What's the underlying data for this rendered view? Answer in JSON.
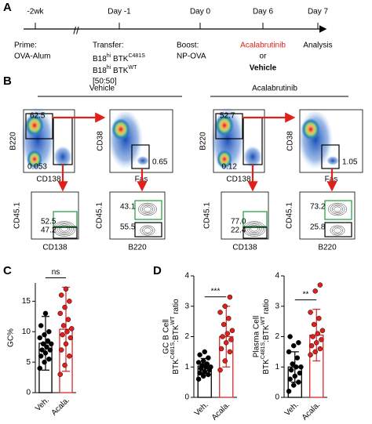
{
  "panel_a": {
    "label": "A",
    "timepoints": [
      "-2wk",
      "Day -1",
      "Day 0",
      "Day 6",
      "Day 7"
    ],
    "prime": [
      "Prime:",
      "OVA-Alum"
    ],
    "transfer": {
      "title": "Transfer:",
      "line1": [
        "B18",
        "hi",
        " BTK",
        "C481S"
      ],
      "line2": [
        "B18",
        "hi",
        " BTK",
        "WT"
      ],
      "ratio": "[50:50]"
    },
    "boost": [
      "Boost:",
      "NP-OVA"
    ],
    "treatment": [
      "Acalabrutinib",
      "or",
      "Vehicle"
    ],
    "analysis": "Analysis"
  },
  "panel_b": {
    "label": "B",
    "axes": [
      {
        "x": "CD138",
        "y": "B220"
      },
      {
        "x": "Fas",
        "y": "CD38"
      },
      {
        "x": "CD138",
        "y": "CD45.1"
      },
      {
        "x": "B220",
        "y": "CD45.1"
      }
    ],
    "groups": [
      {
        "name": "Vehicle",
        "gates": [
          [
            "62.5",
            "0.053"
          ],
          [
            "0.65"
          ],
          [
            "52.5",
            "47.2"
          ],
          [
            "43.1",
            "55.5"
          ]
        ]
      },
      {
        "name": "Acalabrutinib",
        "gates": [
          [
            "52.7",
            "0.12"
          ],
          [
            "1.05"
          ],
          [
            "77.0",
            "22.4"
          ],
          [
            "73.2",
            "25.8"
          ]
        ]
      }
    ]
  },
  "panel_labels": [
    "C",
    "D"
  ],
  "chart_data": [
    {
      "type": "bar",
      "ylabel": {
        "line1": "GC%"
      },
      "categories": [
        "Veh.",
        "Acala."
      ],
      "values": [
        8.1,
        10.4
      ],
      "errors": [
        4.4,
        6.9
      ],
      "colors": [
        "#000000",
        "#d42a2a"
      ],
      "points": [
        [
          4,
          5,
          5.5,
          6,
          6.5,
          7,
          7,
          7.5,
          8,
          8,
          8.5,
          9,
          9.5,
          10,
          11,
          13
        ],
        [
          3,
          4.5,
          6,
          7,
          8,
          9,
          9.5,
          10,
          10.5,
          11,
          12,
          13,
          14,
          15,
          16,
          17
        ]
      ],
      "ylim": [
        0,
        18
      ],
      "yticks": [
        0,
        5,
        10,
        15
      ],
      "significance": "ns"
    },
    {
      "type": "bar",
      "ylabel": {
        "line1": "GC B Cell",
        "line2": [
          "BTK",
          "C481S",
          ":BTK",
          "WT",
          " ratio"
        ]
      },
      "categories": [
        "Veh.",
        "Acala."
      ],
      "values": [
        1.03,
        2.0
      ],
      "errors": [
        0.25,
        1.0
      ],
      "colors": [
        "#000000",
        "#d42a2a"
      ],
      "points": [
        [
          0.6,
          0.7,
          0.75,
          0.8,
          0.85,
          0.9,
          0.95,
          1.0,
          1.0,
          1.05,
          1.1,
          1.15,
          1.2,
          1.3,
          1.4,
          1.5
        ],
        [
          0.9,
          1.2,
          1.5,
          1.6,
          1.8,
          1.9,
          2.0,
          2.1,
          2.2,
          2.4,
          2.6,
          2.8,
          3.0,
          3.3
        ]
      ],
      "ylim": [
        0,
        4
      ],
      "yticks": [
        0,
        1,
        2,
        3,
        4
      ],
      "significance": "***"
    },
    {
      "type": "bar",
      "ylabel": {
        "line1": "Plasma Cell",
        "line2": [
          "BTK",
          "C481S",
          ":BTK",
          "WT",
          " ratio"
        ]
      },
      "categories": [
        "Veh.",
        "Acala."
      ],
      "values": [
        1.0,
        2.05
      ],
      "errors": [
        0.5,
        0.85
      ],
      "colors": [
        "#000000",
        "#d42a2a"
      ],
      "points": [
        [
          0.2,
          0.4,
          0.5,
          0.6,
          0.7,
          0.8,
          0.9,
          1.0,
          1.0,
          1.1,
          1.3,
          1.5,
          1.7,
          1.8,
          2.0
        ],
        [
          1.4,
          1.5,
          1.6,
          1.7,
          1.8,
          1.9,
          2.0,
          2.1,
          2.2,
          2.4,
          2.6,
          2.8,
          3.5,
          3.7
        ]
      ],
      "ylim": [
        0,
        4
      ],
      "yticks": [
        0,
        1,
        2,
        3,
        4
      ],
      "significance": "**"
    }
  ]
}
